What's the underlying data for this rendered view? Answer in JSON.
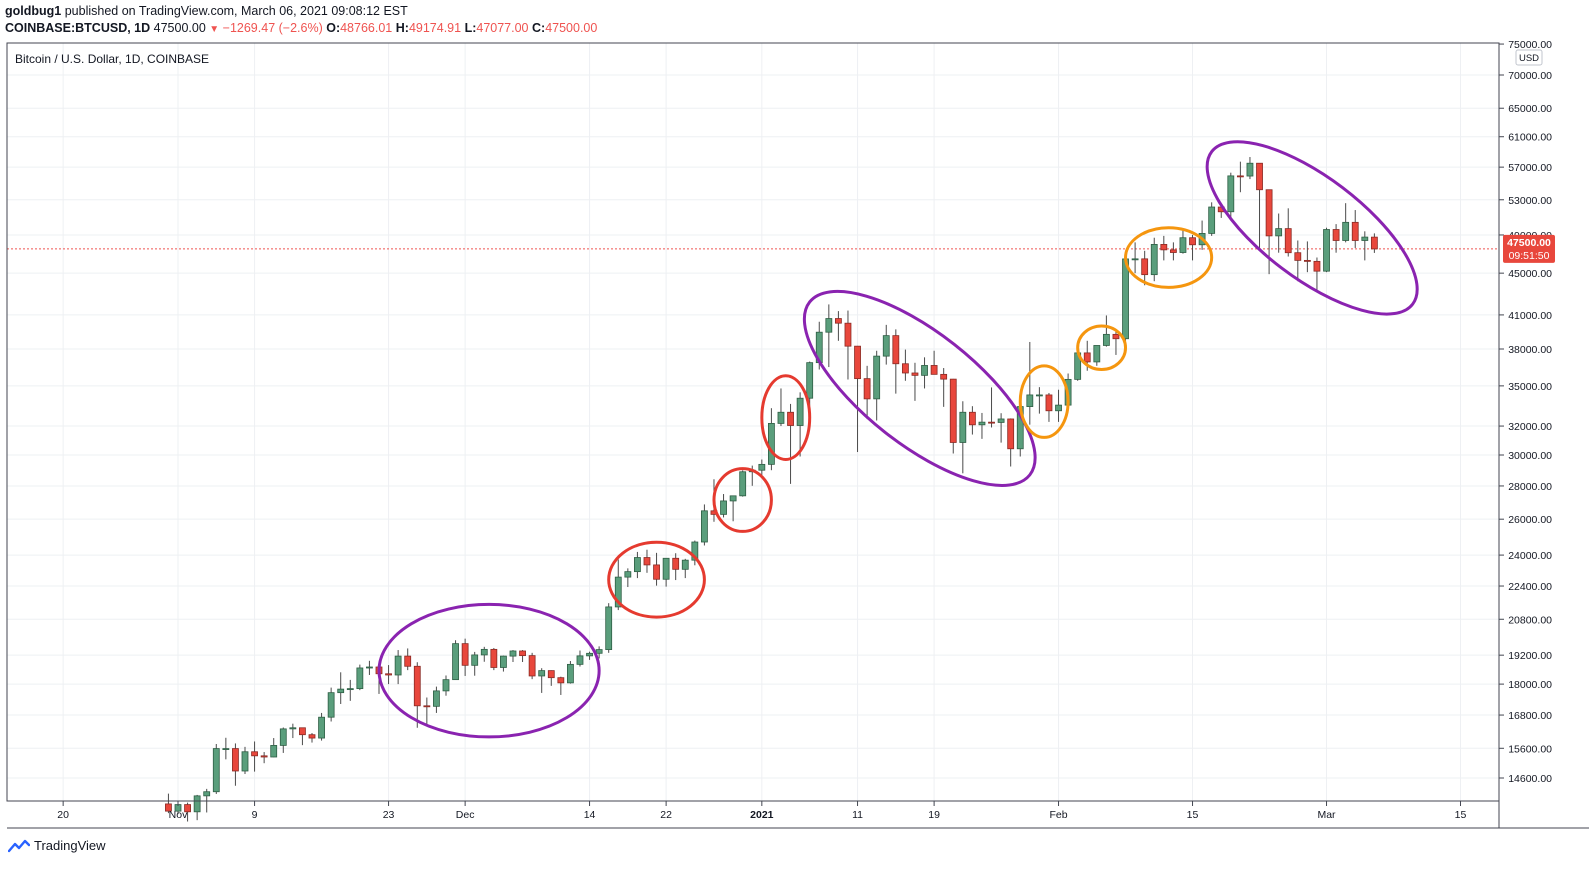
{
  "header": {
    "publisher": "goldbug1",
    "published_text": "published on TradingView.com, March 06, 2021 09:08:12 EST",
    "symbol": "COINBASE:BTCUSD, 1D",
    "last": "47500.00",
    "change": "−1269.47 (−2.6%)",
    "o_label": "O:",
    "o_value": "48766.01",
    "h_label": "H:",
    "h_value": "49174.91",
    "l_label": "L:",
    "l_value": "47077.00",
    "c_label": "C:",
    "c_value": "47500.00"
  },
  "chart_data": {
    "type": "candlestick",
    "title": "Bitcoin / U.S. Dollar, 1D, COINBASE",
    "currency": "USD",
    "y_scale": "log",
    "ylim": [
      13500,
      75000
    ],
    "y_ticks": [
      "75000.00",
      "70000.00",
      "65000.00",
      "61000.00",
      "57000.00",
      "53000.00",
      "49000.00",
      "45000.00",
      "41000.00",
      "38000.00",
      "35000.00",
      "32000.00",
      "30000.00",
      "28000.00",
      "26000.00",
      "24000.00",
      "22400.00",
      "20800.00",
      "19200.00",
      "18000.00",
      "16800.00",
      "15600.00",
      "14600.00"
    ],
    "y_tick_values": [
      75000,
      70000,
      65000,
      61000,
      57000,
      53000,
      49000,
      45000,
      41000,
      38000,
      35000,
      32000,
      30000,
      28000,
      26000,
      24000,
      22400,
      20800,
      19200,
      18000,
      16800,
      15600,
      14600
    ],
    "x_ticks": [
      {
        "label": "20",
        "date": "2020-10-20",
        "bold": false
      },
      {
        "label": "Nov",
        "date": "2020-11-01",
        "bold": false
      },
      {
        "label": "9",
        "date": "2020-11-09",
        "bold": false
      },
      {
        "label": "23",
        "date": "2020-11-23",
        "bold": false
      },
      {
        "label": "Dec",
        "date": "2020-12-01",
        "bold": false
      },
      {
        "label": "14",
        "date": "2020-12-14",
        "bold": false
      },
      {
        "label": "22",
        "date": "2020-12-22",
        "bold": false
      },
      {
        "label": "2021",
        "date": "2021-01-01",
        "bold": true
      },
      {
        "label": "11",
        "date": "2021-01-11",
        "bold": false
      },
      {
        "label": "19",
        "date": "2021-01-19",
        "bold": false
      },
      {
        "label": "Feb",
        "date": "2021-02-01",
        "bold": false
      },
      {
        "label": "15",
        "date": "2021-02-15",
        "bold": false
      },
      {
        "label": "Mar",
        "date": "2021-03-01",
        "bold": false
      },
      {
        "label": "15",
        "date": "2021-03-15",
        "bold": false
      }
    ],
    "last_price_label": "47500.00",
    "countdown_label": "09:51:50",
    "last_price": 47500,
    "colors": {
      "up": "#5a9e7c",
      "up_border": "#2e5e44",
      "down": "#e8473c",
      "down_border": "#8a2a24",
      "grid": "#eef0f3",
      "last_line": "#ef5350",
      "purple": "#8a23b0",
      "red_ellipse": "#e53a2f",
      "orange": "#f5960f"
    },
    "candles": [
      [
        "2020-10-31",
        13780,
        14100,
        13500,
        13560
      ],
      [
        "2020-11-01",
        13560,
        13800,
        13470,
        13760
      ],
      [
        "2020-11-02",
        13760,
        13820,
        13250,
        13540
      ],
      [
        "2020-11-03",
        13540,
        14060,
        13290,
        14030
      ],
      [
        "2020-11-04",
        14030,
        14250,
        13520,
        14160
      ],
      [
        "2020-11-05",
        14160,
        15750,
        14090,
        15590
      ],
      [
        "2020-11-06",
        15590,
        15970,
        15220,
        15590
      ],
      [
        "2020-11-07",
        15590,
        15770,
        14350,
        14830
      ],
      [
        "2020-11-08",
        14830,
        15650,
        14730,
        15480
      ],
      [
        "2020-11-09",
        15480,
        15840,
        14810,
        15340
      ],
      [
        "2020-11-10",
        15340,
        15470,
        15090,
        15300
      ],
      [
        "2020-11-11",
        15300,
        15960,
        15290,
        15700
      ],
      [
        "2020-11-12",
        15700,
        16340,
        15440,
        16290
      ],
      [
        "2020-11-13",
        16290,
        16480,
        15960,
        16330
      ],
      [
        "2020-11-14",
        16330,
        16330,
        15710,
        16080
      ],
      [
        "2020-11-15",
        16080,
        16140,
        15800,
        15960
      ],
      [
        "2020-11-16",
        15960,
        16880,
        15870,
        16720
      ],
      [
        "2020-11-17",
        16720,
        17860,
        16560,
        17660
      ],
      [
        "2020-11-18",
        17660,
        18480,
        17220,
        17800
      ],
      [
        "2020-11-19",
        17800,
        18170,
        17340,
        17820
      ],
      [
        "2020-11-20",
        17820,
        18800,
        17760,
        18660
      ],
      [
        "2020-11-21",
        18660,
        18960,
        18370,
        18700
      ],
      [
        "2020-11-22",
        18700,
        18730,
        17610,
        18420
      ],
      [
        "2020-11-23",
        18420,
        18780,
        18000,
        18370
      ],
      [
        "2020-11-24",
        18370,
        19420,
        18000,
        19160
      ],
      [
        "2020-11-25",
        19160,
        19490,
        18570,
        18730
      ],
      [
        "2020-11-26",
        18730,
        18900,
        16330,
        17150
      ],
      [
        "2020-11-27",
        17150,
        17470,
        16460,
        17130
      ],
      [
        "2020-11-28",
        17130,
        17900,
        16880,
        17730
      ],
      [
        "2020-11-29",
        17730,
        18350,
        17540,
        18180
      ],
      [
        "2020-11-30",
        18180,
        19850,
        18180,
        19700
      ],
      [
        "2020-12-01",
        19700,
        19920,
        18330,
        18770
      ],
      [
        "2020-12-02",
        18770,
        19340,
        18340,
        19210
      ],
      [
        "2020-12-03",
        19210,
        19560,
        18920,
        19450
      ],
      [
        "2020-12-04",
        19450,
        19510,
        18570,
        18680
      ],
      [
        "2020-12-05",
        18680,
        19180,
        18510,
        19160
      ],
      [
        "2020-12-06",
        19160,
        19420,
        18910,
        19380
      ],
      [
        "2020-12-07",
        19380,
        19420,
        18910,
        19180
      ],
      [
        "2020-12-08",
        19180,
        19300,
        18200,
        18330
      ],
      [
        "2020-12-09",
        18330,
        18650,
        17650,
        18550
      ],
      [
        "2020-12-10",
        18550,
        18560,
        17930,
        18260
      ],
      [
        "2020-12-11",
        18260,
        18300,
        17570,
        18050
      ],
      [
        "2020-12-12",
        18050,
        18950,
        18020,
        18810
      ],
      [
        "2020-12-13",
        18810,
        19400,
        18720,
        19170
      ],
      [
        "2020-12-14",
        19170,
        19350,
        19000,
        19280
      ],
      [
        "2020-12-15",
        19280,
        19580,
        19060,
        19440
      ],
      [
        "2020-12-16",
        19440,
        21560,
        19300,
        21380
      ],
      [
        "2020-12-17",
        21380,
        23770,
        21230,
        22850
      ],
      [
        "2020-12-18",
        22850,
        23300,
        22350,
        23130
      ],
      [
        "2020-12-19",
        23130,
        24170,
        22800,
        23870
      ],
      [
        "2020-12-20",
        23870,
        24290,
        23070,
        23480
      ],
      [
        "2020-12-21",
        23480,
        24120,
        22420,
        22740
      ],
      [
        "2020-12-22",
        22740,
        23830,
        22370,
        23830
      ],
      [
        "2020-12-23",
        23830,
        24100,
        22700,
        23250
      ],
      [
        "2020-12-24",
        23250,
        23800,
        22800,
        23730
      ],
      [
        "2020-12-25",
        23730,
        24790,
        23460,
        24710
      ],
      [
        "2020-12-26",
        24710,
        26870,
        24520,
        26490
      ],
      [
        "2020-12-27",
        26490,
        28420,
        25850,
        26280
      ],
      [
        "2020-12-28",
        26280,
        27500,
        26100,
        27080
      ],
      [
        "2020-12-29",
        27080,
        27410,
        25880,
        27390
      ],
      [
        "2020-12-30",
        27390,
        28990,
        27340,
        28900
      ],
      [
        "2020-12-31",
        28900,
        29300,
        28010,
        29000
      ],
      [
        "2021-01-01",
        29000,
        29700,
        28700,
        29380
      ],
      [
        "2021-01-02",
        29380,
        33300,
        29000,
        32190
      ],
      [
        "2021-01-03",
        32190,
        34800,
        32000,
        33000
      ],
      [
        "2021-01-04",
        33000,
        33620,
        28130,
        32040
      ],
      [
        "2021-01-05",
        32040,
        34500,
        29900,
        34050
      ],
      [
        "2021-01-06",
        34050,
        36950,
        33500,
        36860
      ],
      [
        "2021-01-07",
        36860,
        40380,
        36300,
        39450
      ],
      [
        "2021-01-08",
        39450,
        41970,
        36500,
        40670
      ],
      [
        "2021-01-09",
        40670,
        41350,
        38700,
        40250
      ],
      [
        "2021-01-10",
        40250,
        41400,
        35500,
        38240
      ],
      [
        "2021-01-11",
        38240,
        38260,
        30200,
        35570
      ],
      [
        "2021-01-12",
        35570,
        36600,
        32500,
        34000
      ],
      [
        "2021-01-13",
        34000,
        37850,
        32400,
        37400
      ],
      [
        "2021-01-14",
        37400,
        40100,
        36700,
        39150
      ],
      [
        "2021-01-15",
        39150,
        39700,
        34400,
        36770
      ],
      [
        "2021-01-16",
        36770,
        37950,
        35400,
        36020
      ],
      [
        "2021-01-17",
        36020,
        36850,
        33850,
        35830
      ],
      [
        "2021-01-18",
        35830,
        37300,
        34800,
        36630
      ],
      [
        "2021-01-19",
        36630,
        37850,
        35900,
        35910
      ],
      [
        "2021-01-20",
        35910,
        36420,
        33400,
        35530
      ],
      [
        "2021-01-21",
        35530,
        35550,
        30100,
        30850
      ],
      [
        "2021-01-22",
        30850,
        33820,
        28800,
        33000
      ],
      [
        "2021-01-23",
        33000,
        33450,
        31400,
        32090
      ],
      [
        "2021-01-24",
        32090,
        32950,
        31100,
        32280
      ],
      [
        "2021-01-25",
        32280,
        34880,
        31900,
        32260
      ],
      [
        "2021-01-26",
        32260,
        32930,
        30840,
        32510
      ],
      [
        "2021-01-27",
        32510,
        32550,
        29240,
        30420
      ],
      [
        "2021-01-28",
        30420,
        34000,
        29900,
        33420
      ],
      [
        "2021-01-29",
        33420,
        38600,
        32100,
        34300
      ],
      [
        "2021-01-30",
        34300,
        34900,
        32900,
        34300
      ],
      [
        "2021-01-31",
        34300,
        34450,
        32300,
        33110
      ],
      [
        "2021-02-01",
        33110,
        34700,
        32300,
        33530
      ],
      [
        "2021-02-02",
        33530,
        35980,
        33420,
        35510
      ],
      [
        "2021-02-03",
        35510,
        37700,
        35400,
        37670
      ],
      [
        "2021-02-04",
        37670,
        38700,
        36200,
        36920
      ],
      [
        "2021-02-05",
        36920,
        38300,
        36600,
        38300
      ],
      [
        "2021-02-06",
        38300,
        40950,
        38200,
        39260
      ],
      [
        "2021-02-07",
        39260,
        39700,
        37500,
        38880
      ],
      [
        "2021-02-08",
        38880,
        46800,
        37950,
        46450
      ],
      [
        "2021-02-09",
        46450,
        48200,
        45000,
        46460
      ],
      [
        "2021-02-10",
        46460,
        47300,
        43800,
        44850
      ],
      [
        "2021-02-11",
        44850,
        48700,
        44200,
        47980
      ],
      [
        "2021-02-12",
        47980,
        48900,
        46300,
        47400
      ],
      [
        "2021-02-13",
        47400,
        48200,
        46300,
        47120
      ],
      [
        "2021-02-14",
        47120,
        49700,
        47000,
        48700
      ],
      [
        "2021-02-15",
        48700,
        49000,
        46300,
        47940
      ],
      [
        "2021-02-16",
        47940,
        50600,
        47400,
        49170
      ],
      [
        "2021-02-17",
        49170,
        52700,
        48900,
        52150
      ],
      [
        "2021-02-18",
        52150,
        52500,
        50900,
        51600
      ],
      [
        "2021-02-19",
        51600,
        56300,
        50700,
        55900
      ],
      [
        "2021-02-20",
        55900,
        57700,
        53900,
        55880
      ],
      [
        "2021-02-21",
        55880,
        58300,
        55500,
        57500
      ],
      [
        "2021-02-22",
        57500,
        57500,
        47600,
        54200
      ],
      [
        "2021-02-23",
        54200,
        54200,
        44900,
        48900
      ],
      [
        "2021-02-24",
        48900,
        51400,
        47100,
        49700
      ],
      [
        "2021-02-25",
        49700,
        52000,
        46700,
        47100
      ],
      [
        "2021-02-26",
        47100,
        48400,
        44200,
        46300
      ],
      [
        "2021-02-27",
        46300,
        48300,
        45100,
        46200
      ],
      [
        "2021-02-28",
        46200,
        46600,
        43100,
        45200
      ],
      [
        "2021-03-01",
        45200,
        49800,
        45100,
        49600
      ],
      [
        "2021-03-02",
        49600,
        50200,
        47100,
        48400
      ],
      [
        "2021-03-03",
        48400,
        52600,
        48200,
        50400
      ],
      [
        "2021-03-04",
        50400,
        51800,
        47600,
        48400
      ],
      [
        "2021-03-05",
        48400,
        49400,
        46300,
        48770
      ],
      [
        "2021-03-06",
        48766.01,
        49174.91,
        47077,
        47500
      ]
    ],
    "annotations": [
      {
        "shape": "ellipse",
        "color": "purple",
        "from": "2020-11-22",
        "to": "2020-12-15",
        "price_low": 16000,
        "price_high": 21500
      },
      {
        "shape": "ellipse",
        "color": "red",
        "from": "2020-12-16",
        "to": "2020-12-26",
        "price_low": 20900,
        "price_high": 24700
      },
      {
        "shape": "ellipse",
        "color": "red",
        "from": "2020-12-27",
        "to": "2021-01-02",
        "price_low": 25300,
        "price_high": 29100
      },
      {
        "shape": "ellipse",
        "color": "red",
        "from": "2021-01-01",
        "to": "2021-01-06",
        "price_low": 29700,
        "price_high": 35800
      },
      {
        "shape": "ellipse",
        "color": "purple",
        "from": "2021-01-06",
        "to": "2021-01-29",
        "price_low": 28700,
        "price_high": 42200
      },
      {
        "shape": "ellipse",
        "color": "orange",
        "from": "2021-01-28",
        "to": "2021-02-02",
        "price_low": 31200,
        "price_high": 36600
      },
      {
        "shape": "ellipse",
        "color": "orange",
        "from": "2021-02-03",
        "to": "2021-02-08",
        "price_low": 36300,
        "price_high": 40000
      },
      {
        "shape": "ellipse",
        "color": "orange",
        "from": "2021-02-08",
        "to": "2021-02-17",
        "price_low": 43600,
        "price_high": 49800
      },
      {
        "shape": "ellipse",
        "color": "purple",
        "from": "2021-02-17",
        "to": "2021-03-10",
        "price_low": 42000,
        "price_high": 59000
      }
    ]
  },
  "footer": {
    "brand": "TradingView"
  }
}
